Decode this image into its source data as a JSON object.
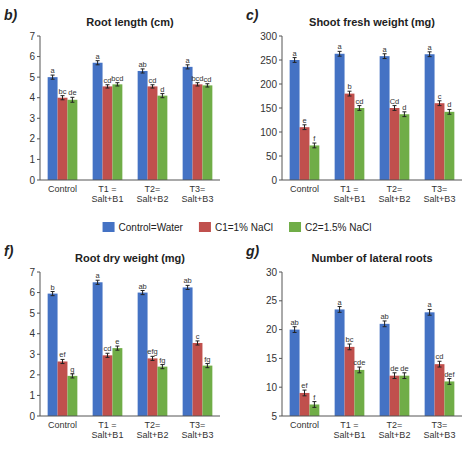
{
  "chart_data": [
    {
      "type": "bar",
      "title": "Root length (cm)",
      "label": "b)",
      "grid": false,
      "legend": "bottom",
      "categories": [
        "Control",
        "T1 =\nSalt+B1",
        "T2=\nSalt+B2",
        "T3=\nSalt+B3"
      ],
      "ylim": [
        0,
        7
      ],
      "yticks": [
        0,
        1,
        2,
        3,
        4,
        5,
        6,
        7
      ],
      "series": [
        {
          "name": "Control=Water",
          "color": "#4472C4",
          "values": [
            5.0,
            5.7,
            5.3,
            5.5
          ],
          "errors": [
            0.1,
            0.1,
            0.1,
            0.1
          ],
          "letters": [
            "a",
            "a",
            "ab",
            "a"
          ]
        },
        {
          "name": "C1=1% NaCl",
          "color": "#C0504D",
          "values": [
            4.0,
            4.55,
            4.55,
            4.65
          ],
          "errors": [
            0.1,
            0.08,
            0.08,
            0.08
          ],
          "letters": [
            "bc",
            "cd",
            "cd",
            "bcd"
          ]
        },
        {
          "name": "C2=1.5% NaCl",
          "color": "#70AD47",
          "values": [
            3.9,
            4.65,
            4.1,
            4.6
          ],
          "errors": [
            0.12,
            0.08,
            0.1,
            0.08
          ],
          "letters": [
            "de",
            "bcd",
            "d",
            "cd"
          ]
        }
      ]
    },
    {
      "type": "bar",
      "title": "Shoot fresh weight (mg)",
      "label": "c)",
      "grid": false,
      "categories": [
        "Control",
        "T1 =\nSalt+B1",
        "T2=\nSalt+B2",
        "T3=\nSalt+B3"
      ],
      "ylim": [
        0,
        300
      ],
      "yticks": [
        0,
        50,
        100,
        150,
        200,
        250,
        300
      ],
      "series": [
        {
          "name": "Control=Water",
          "color": "#4472C4",
          "values": [
            250,
            263,
            258,
            262
          ],
          "errors": [
            5,
            5,
            5,
            5
          ],
          "letters": [
            "a",
            "a",
            "a",
            "a"
          ]
        },
        {
          "name": "C1=1% NaCl",
          "color": "#C0504D",
          "values": [
            110,
            180,
            150,
            160
          ],
          "errors": [
            5,
            5,
            5,
            5
          ],
          "letters": [
            "e",
            "b",
            "Cd",
            "c"
          ]
        },
        {
          "name": "C2=1.5% NaCl",
          "color": "#70AD47",
          "values": [
            72,
            150,
            137,
            142
          ],
          "errors": [
            5,
            5,
            5,
            5
          ],
          "letters": [
            "f",
            "cd",
            "d",
            "d"
          ]
        }
      ]
    },
    {
      "type": "bar",
      "title": "Root dry weight (mg)",
      "label": "f)",
      "grid": false,
      "categories": [
        "Control",
        "T1 =\nSalt+B1",
        "T2=\nSalt+B2",
        "T3=\nSalt+B3"
      ],
      "ylim": [
        0,
        7
      ],
      "yticks": [
        0,
        1,
        2,
        3,
        4,
        5,
        6,
        7
      ],
      "series": [
        {
          "name": "Control=Water",
          "color": "#4472C4",
          "values": [
            5.95,
            6.5,
            6.0,
            6.25
          ],
          "errors": [
            0.1,
            0.1,
            0.1,
            0.1
          ],
          "letters": [
            "b",
            "a",
            "ab",
            "ab"
          ]
        },
        {
          "name": "C1=1% NaCl",
          "color": "#C0504D",
          "values": [
            2.65,
            2.95,
            2.8,
            3.55
          ],
          "errors": [
            0.1,
            0.1,
            0.1,
            0.1
          ],
          "letters": [
            "ef",
            "cd",
            "efg",
            "c"
          ]
        },
        {
          "name": "C2=1.5% NaCl",
          "color": "#70AD47",
          "values": [
            1.95,
            3.3,
            2.4,
            2.45
          ],
          "errors": [
            0.1,
            0.1,
            0.1,
            0.1
          ],
          "letters": [
            "g",
            "e",
            "fg",
            "fg"
          ]
        }
      ]
    },
    {
      "type": "bar",
      "title": "Number of lateral roots",
      "label": "g)",
      "grid": false,
      "categories": [
        "Control",
        "T1 =\nSalt+B1",
        "T2=\nSalt+B2",
        "T3=\nSalt+B3"
      ],
      "ylim": [
        5,
        30
      ],
      "yticks": [
        5,
        10,
        15,
        20,
        25,
        30
      ],
      "series": [
        {
          "name": "Control=Water",
          "color": "#4472C4",
          "values": [
            20.0,
            23.5,
            21.0,
            23.0
          ],
          "errors": [
            0.5,
            0.5,
            0.5,
            0.5
          ],
          "letters": [
            "ab",
            "a",
            "ab",
            "a"
          ]
        },
        {
          "name": "C1=1% NaCl",
          "color": "#C0504D",
          "values": [
            9.0,
            17.0,
            12.0,
            14.0
          ],
          "errors": [
            0.5,
            0.5,
            0.5,
            0.5
          ],
          "letters": [
            "ef",
            "bc",
            "de",
            "cd"
          ]
        },
        {
          "name": "C2=1.5% NaCl",
          "color": "#70AD47",
          "values": [
            7.0,
            13.0,
            12.0,
            11.0
          ],
          "errors": [
            0.5,
            0.5,
            0.5,
            0.5
          ],
          "letters": [
            "f",
            "cde",
            "de",
            "def"
          ]
        }
      ]
    }
  ]
}
